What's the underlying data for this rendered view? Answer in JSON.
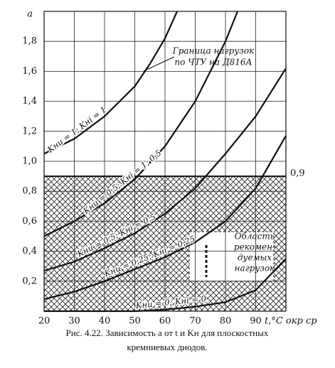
{
  "chart_data": {
    "type": "line",
    "y_label": "a",
    "x_label": "t,°C окр ср",
    "x": [
      20,
      30,
      40,
      50,
      55,
      60,
      64,
      70,
      80,
      84,
      90,
      100
    ],
    "series": [
      {
        "name": "Kнu = 1; Kнi = 1",
        "color": "#111",
        "values": [
          1.05,
          1.15,
          1.3,
          1.5,
          1.65,
          1.82,
          2.0,
          null,
          null,
          null,
          null,
          null
        ]
      },
      {
        "name": "Kнu = 0,5; Kнi = 1; 0,5",
        "color": "#111",
        "values": [
          0.5,
          0.6,
          0.72,
          0.88,
          null,
          1.1,
          null,
          1.4,
          1.8,
          2.0,
          null,
          null
        ]
      },
      {
        "name": "Kнu = 0,5; Kнi = 0,5",
        "color": "#111",
        "values": [
          0.27,
          0.33,
          0.42,
          0.52,
          null,
          0.65,
          null,
          0.82,
          1.05,
          null,
          1.3,
          1.62
        ]
      },
      {
        "name": "Kнu = 0,25; Kнi = 0,25",
        "color": "#111",
        "values": [
          0.08,
          0.13,
          0.2,
          0.28,
          null,
          0.36,
          null,
          0.46,
          0.6,
          null,
          0.82,
          1.17
        ]
      },
      {
        "name": "Kнu = 0; Kнi = 0",
        "color": "#111",
        "values": [
          0,
          0,
          0,
          0,
          null,
          0.01,
          null,
          0.03,
          0.06,
          null,
          0.14,
          0.35
        ]
      }
    ],
    "threshold": {
      "value": 0.9,
      "label": "0,9"
    },
    "annotations": [
      "Граница нагрузок",
      "по ЧТУ на Д816А",
      "Область",
      "рекомен-",
      "дуемых",
      "нагрузок"
    ],
    "caption": [
      "Рис. 4.22. Зависимость a от t и Kн для плоскостных",
      "кремниевых диодов."
    ],
    "xlim": [
      20,
      100
    ],
    "ylim": [
      0,
      2.0
    ],
    "xticks": [
      20,
      30,
      40,
      50,
      60,
      70,
      80,
      90
    ],
    "yticks": [
      {
        "value": 0.2,
        "label": "0,2"
      },
      {
        "value": 0.4,
        "label": "0,4"
      },
      {
        "value": 0.6,
        "label": "0,6"
      },
      {
        "value": 0.8,
        "label": "0,8"
      },
      {
        "value": 1.0,
        "label": "1,0"
      },
      {
        "value": 1.2,
        "label": "1,2"
      },
      {
        "value": 1.4,
        "label": "1,4"
      },
      {
        "value": 1.6,
        "label": "1,6"
      },
      {
        "value": 1.8,
        "label": "1,8"
      }
    ],
    "grid": true
  }
}
